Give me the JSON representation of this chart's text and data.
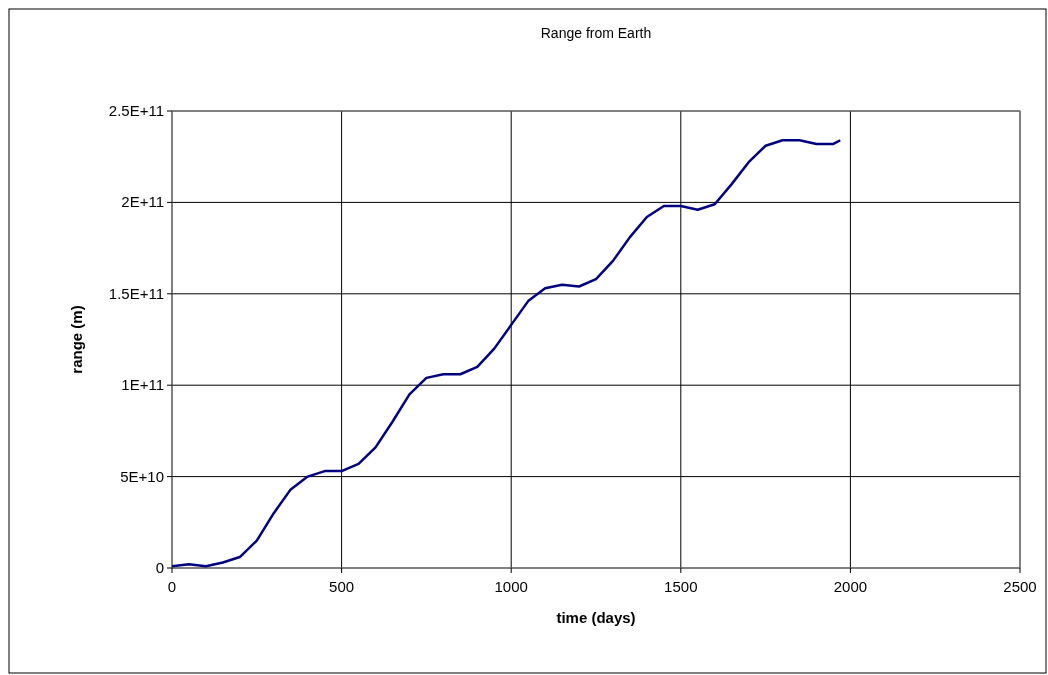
{
  "chart_data": {
    "type": "line",
    "title": "Range from Earth",
    "xlabel": "time (days)",
    "ylabel": "range (m)",
    "x": [
      0,
      50,
      100,
      150,
      200,
      250,
      300,
      350,
      400,
      450,
      500,
      550,
      600,
      650,
      700,
      750,
      800,
      850,
      900,
      950,
      1000,
      1050,
      1100,
      1150,
      1200,
      1250,
      1300,
      1350,
      1400,
      1450,
      1500,
      1550,
      1600,
      1650,
      1700,
      1750,
      1800,
      1850,
      1900,
      1950,
      1970
    ],
    "series": [
      {
        "color": "#000080",
        "values": [
          1000000000.0,
          2000000000.0,
          1000000000.0,
          3000000000.0,
          6000000000.0,
          15000000000.0,
          30000000000.0,
          43000000000.0,
          50000000000.0,
          53000000000.0,
          53000000000.0,
          57000000000.0,
          66000000000.0,
          80000000000.0,
          95000000000.0,
          104000000000.0,
          106000000000.0,
          106000000000.0,
          110000000000.0,
          120000000000.0,
          133000000000.0,
          146000000000.0,
          153000000000.0,
          155000000000.0,
          154000000000.0,
          158000000000.0,
          168000000000.0,
          181000000000.0,
          192000000000.0,
          198000000000.0,
          198000000000.0,
          196000000000.0,
          199000000000.0,
          210000000000.0,
          222000000000.0,
          231000000000.0,
          234000000000.0,
          234000000000.0,
          232000000000.0,
          232000000000.0,
          234000000000.0
        ]
      }
    ],
    "xlim": [
      0,
      2500
    ],
    "xticks": [
      0,
      500,
      1000,
      1500,
      2000,
      2500
    ],
    "ylim": [
      0,
      250000000000
    ],
    "yticks": [
      {
        "value": 0,
        "label": "0"
      },
      {
        "value": 50000000000,
        "label": "5E+10"
      },
      {
        "value": 100000000000,
        "label": "1E+11"
      },
      {
        "value": 150000000000,
        "label": "1.5E+11"
      },
      {
        "value": 200000000000,
        "label": "2E+11"
      },
      {
        "value": 250000000000,
        "label": "2.5E+11"
      }
    ],
    "grid": true,
    "marker": "none",
    "line_style": "solid"
  }
}
